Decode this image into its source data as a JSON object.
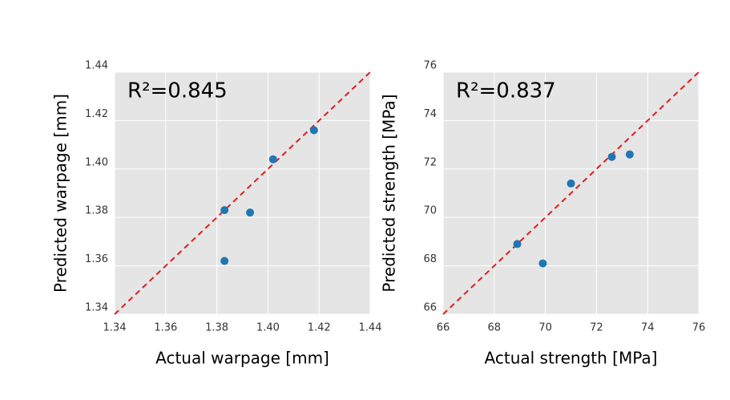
{
  "chart_data": [
    {
      "type": "scatter",
      "xlabel": "Actual warpage [mm]",
      "ylabel": "Predicted warpage [mm]",
      "annotation": "R²=0.845",
      "x": [
        1.383,
        1.383,
        1.393,
        1.402,
        1.418
      ],
      "values": [
        1.383,
        1.362,
        1.382,
        1.404,
        1.416
      ],
      "color": "#1f77b4",
      "xlim": [
        1.34,
        1.44
      ],
      "ylim": [
        1.34,
        1.44
      ],
      "xticks": [
        1.34,
        1.36,
        1.38,
        {
          "value": 1.4,
          "label": "1.40"
        },
        1.42,
        1.44
      ],
      "yticks": [
        1.34,
        1.36,
        1.38,
        {
          "value": 1.4,
          "label": "1.40"
        },
        1.42,
        1.44
      ],
      "grid": true
    },
    {
      "type": "scatter",
      "xlabel": "Actual strength [MPa]",
      "ylabel": "Predicted strength [MPa]",
      "annotation": "R²=0.837",
      "x": [
        68.9,
        69.9,
        71.0,
        72.6,
        73.3
      ],
      "values": [
        68.9,
        68.1,
        71.4,
        72.5,
        72.6
      ],
      "color": "#1f77b4",
      "xlim": [
        66,
        76
      ],
      "ylim": [
        66,
        76
      ],
      "xticks": [
        66,
        68,
        70,
        72,
        74,
        76
      ],
      "yticks": [
        66,
        68,
        70,
        72,
        74,
        76
      ],
      "grid": true
    }
  ]
}
